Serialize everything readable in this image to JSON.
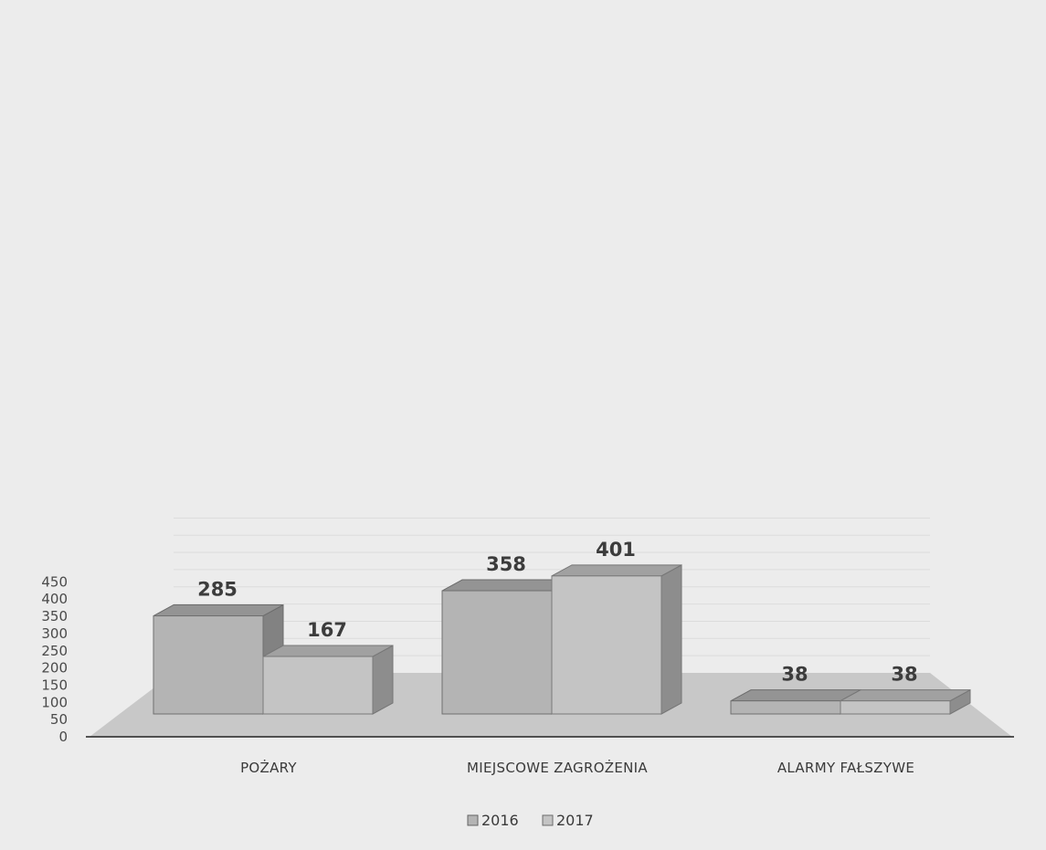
{
  "chart_data": {
    "type": "bar",
    "categories": [
      "POŻARY",
      "MIEJSCOWE ZAGROŻENIA",
      "ALARMY FAŁSZYWE"
    ],
    "series": [
      {
        "name": "2016",
        "values": [
          285,
          358,
          38
        ]
      },
      {
        "name": "2017",
        "values": [
          167,
          401,
          38
        ]
      }
    ],
    "y_ticks": [
      "0",
      "50",
      "100",
      "150",
      "200",
      "250",
      "300",
      "350",
      "400",
      "450"
    ],
    "ylim": [
      0,
      450
    ],
    "grid": true,
    "legend": "bottom-center",
    "colors": {
      "2016": "#b4b4b4",
      "2017": "#c4c4c4",
      "floor": "#c8c8c8",
      "grid": "#dcdcdc"
    }
  }
}
